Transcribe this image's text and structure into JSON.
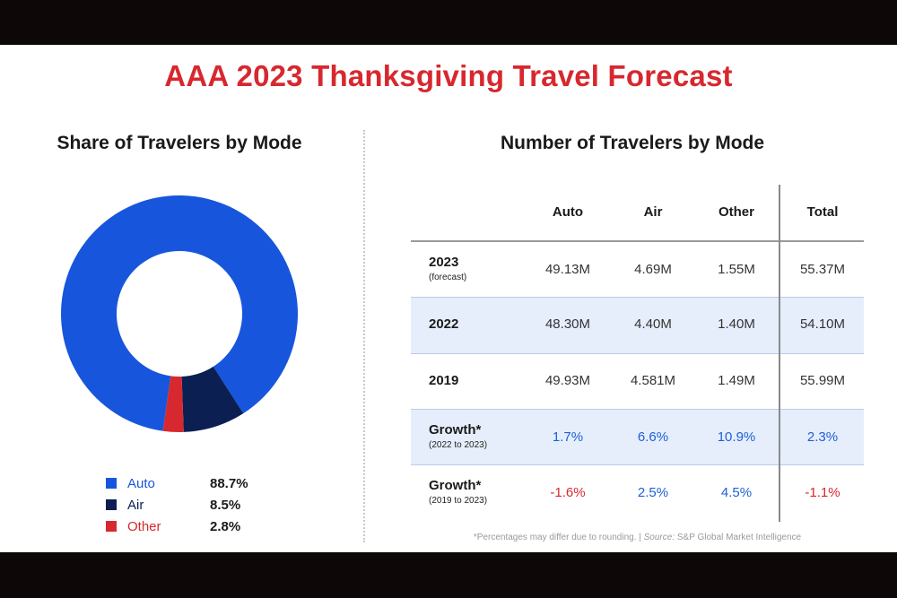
{
  "title": "AAA 2023 Thanksgiving Travel Forecast",
  "colors": {
    "auto": "#1756dc",
    "air": "#0b1f52",
    "other": "#d7282f",
    "title": "#d7282f",
    "positive": "#1f5fd6",
    "negative": "#d7282f",
    "shade": "#e6eefb"
  },
  "chart_data": [
    {
      "type": "pie",
      "title": "Share of Travelers by Mode",
      "categories": [
        "Auto",
        "Air",
        "Other"
      ],
      "values": [
        88.7,
        8.5,
        2.8
      ],
      "labels": [
        "88.7%",
        "8.5%",
        "2.8%"
      ],
      "colors": [
        "#1756dc",
        "#0b1f52",
        "#d7282f"
      ],
      "legend": "bottom"
    },
    {
      "type": "table",
      "title": "Number of Travelers by Mode",
      "columns": [
        "",
        "Auto",
        "Air",
        "Other",
        "Total"
      ],
      "rows": [
        {
          "label": "2023",
          "sublabel": "(forecast)",
          "values": [
            "49.13M",
            "4.69M",
            "1.55M",
            "55.37M"
          ]
        },
        {
          "label": "2022",
          "sublabel": "",
          "values": [
            "48.30M",
            "4.40M",
            "1.40M",
            "54.10M"
          ]
        },
        {
          "label": "2019",
          "sublabel": "",
          "values": [
            "49.93M",
            "4.581M",
            "1.49M",
            "55.99M"
          ]
        },
        {
          "label": "Growth*",
          "sublabel": "(2022 to 2023)",
          "values": [
            "1.7%",
            "6.6%",
            "10.9%",
            "2.3%"
          ]
        },
        {
          "label": "Growth*",
          "sublabel": "(2019 to 2023)",
          "values": [
            "-1.6%",
            "2.5%",
            "4.5%",
            "-1.1%"
          ]
        }
      ],
      "footnote_prefix": "*Percentages may differ due to rounding. | ",
      "footnote_source_label": "Source:",
      "footnote_source": " S&P Global Market Intelligence"
    }
  ]
}
